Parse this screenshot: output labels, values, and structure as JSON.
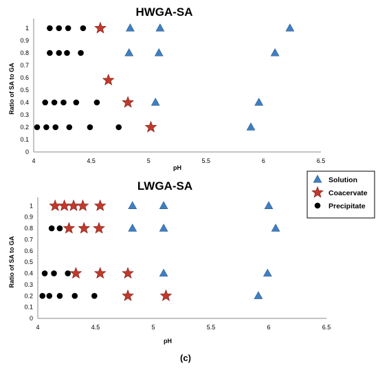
{
  "caption": "(c)",
  "legend": [
    {
      "label": "Solution",
      "marker": "triangle",
      "color": "#3f7fc1"
    },
    {
      "label": "Coacervate",
      "marker": "star",
      "color": "#c0392b"
    },
    {
      "label": "Precipitate",
      "marker": "circle",
      "color": "#000000"
    }
  ],
  "chart_data": [
    {
      "type": "scatter",
      "title": "HWGA-SA",
      "xlabel": "pH",
      "ylabel": "Ratio of SA to GA",
      "xlim": [
        4,
        6.5
      ],
      "ylim": [
        0,
        1.1
      ],
      "xticks": [
        "4",
        "4.5",
        "5",
        "5.5",
        "6",
        "6.5"
      ],
      "yticks": [
        "0",
        "0.1",
        "0.2",
        "0.3",
        "0.4",
        "0.5",
        "0.6",
        "0.7",
        "0.8",
        "0.9",
        "1"
      ],
      "series": [
        {
          "name": "Solution",
          "points": [
            [
              4.84,
              1.0
            ],
            [
              5.1,
              1.0
            ],
            [
              6.23,
              1.0
            ],
            [
              4.83,
              0.8
            ],
            [
              5.09,
              0.8
            ],
            [
              6.1,
              0.8
            ],
            [
              5.06,
              0.4
            ],
            [
              5.96,
              0.4
            ],
            [
              5.89,
              0.2
            ]
          ]
        },
        {
          "name": "Coacervate",
          "points": [
            [
              4.58,
              1.0
            ],
            [
              4.65,
              0.58
            ],
            [
              4.82,
              0.4
            ],
            [
              5.02,
              0.2
            ]
          ]
        },
        {
          "name": "Precipitate",
          "points": [
            [
              4.14,
              1.0
            ],
            [
              4.22,
              1.0
            ],
            [
              4.3,
              1.0
            ],
            [
              4.43,
              1.0
            ],
            [
              4.14,
              0.8
            ],
            [
              4.22,
              0.8
            ],
            [
              4.29,
              0.8
            ],
            [
              4.41,
              0.8
            ],
            [
              4.1,
              0.4
            ],
            [
              4.18,
              0.4
            ],
            [
              4.26,
              0.4
            ],
            [
              4.37,
              0.4
            ],
            [
              4.55,
              0.4
            ],
            [
              4.03,
              0.2
            ],
            [
              4.11,
              0.2
            ],
            [
              4.19,
              0.2
            ],
            [
              4.31,
              0.2
            ],
            [
              4.49,
              0.2
            ],
            [
              4.74,
              0.2
            ]
          ]
        }
      ]
    },
    {
      "type": "scatter",
      "title": "LWGA-SA",
      "xlabel": "pH",
      "ylabel": "Ratio of SA to GA",
      "xlim": [
        4,
        6.5
      ],
      "ylim": [
        0,
        1.1
      ],
      "xticks": [
        "4",
        "4.5",
        "5",
        "5.5",
        "6",
        "6.5"
      ],
      "yticks": [
        "0",
        "0.1",
        "0.2",
        "0.3",
        "0.4",
        "0.5",
        "0.6",
        "0.7",
        "0.8",
        "0.9",
        "1"
      ],
      "series": [
        {
          "name": "Solution",
          "points": [
            [
              4.82,
              1.0
            ],
            [
              5.09,
              1.0
            ],
            [
              6.0,
              1.0
            ],
            [
              4.82,
              0.8
            ],
            [
              5.09,
              0.8
            ],
            [
              6.06,
              0.8
            ],
            [
              5.09,
              0.4
            ],
            [
              5.99,
              0.4
            ],
            [
              5.91,
              0.2
            ]
          ]
        },
        {
          "name": "Coacervate",
          "points": [
            [
              4.15,
              1.0
            ],
            [
              4.23,
              1.0
            ],
            [
              4.31,
              1.0
            ],
            [
              4.39,
              1.0
            ],
            [
              4.54,
              1.0
            ],
            [
              4.27,
              0.8
            ],
            [
              4.4,
              0.8
            ],
            [
              4.53,
              0.8
            ],
            [
              4.33,
              0.4
            ],
            [
              4.54,
              0.4
            ],
            [
              4.78,
              0.4
            ],
            [
              4.78,
              0.2
            ],
            [
              5.11,
              0.2
            ]
          ]
        },
        {
          "name": "Precipitate",
          "points": [
            [
              4.12,
              0.8
            ],
            [
              4.19,
              0.8
            ],
            [
              4.06,
              0.4
            ],
            [
              4.14,
              0.4
            ],
            [
              4.26,
              0.4
            ],
            [
              4.04,
              0.2
            ],
            [
              4.1,
              0.2
            ],
            [
              4.19,
              0.2
            ],
            [
              4.32,
              0.2
            ],
            [
              4.49,
              0.2
            ]
          ]
        }
      ]
    }
  ]
}
